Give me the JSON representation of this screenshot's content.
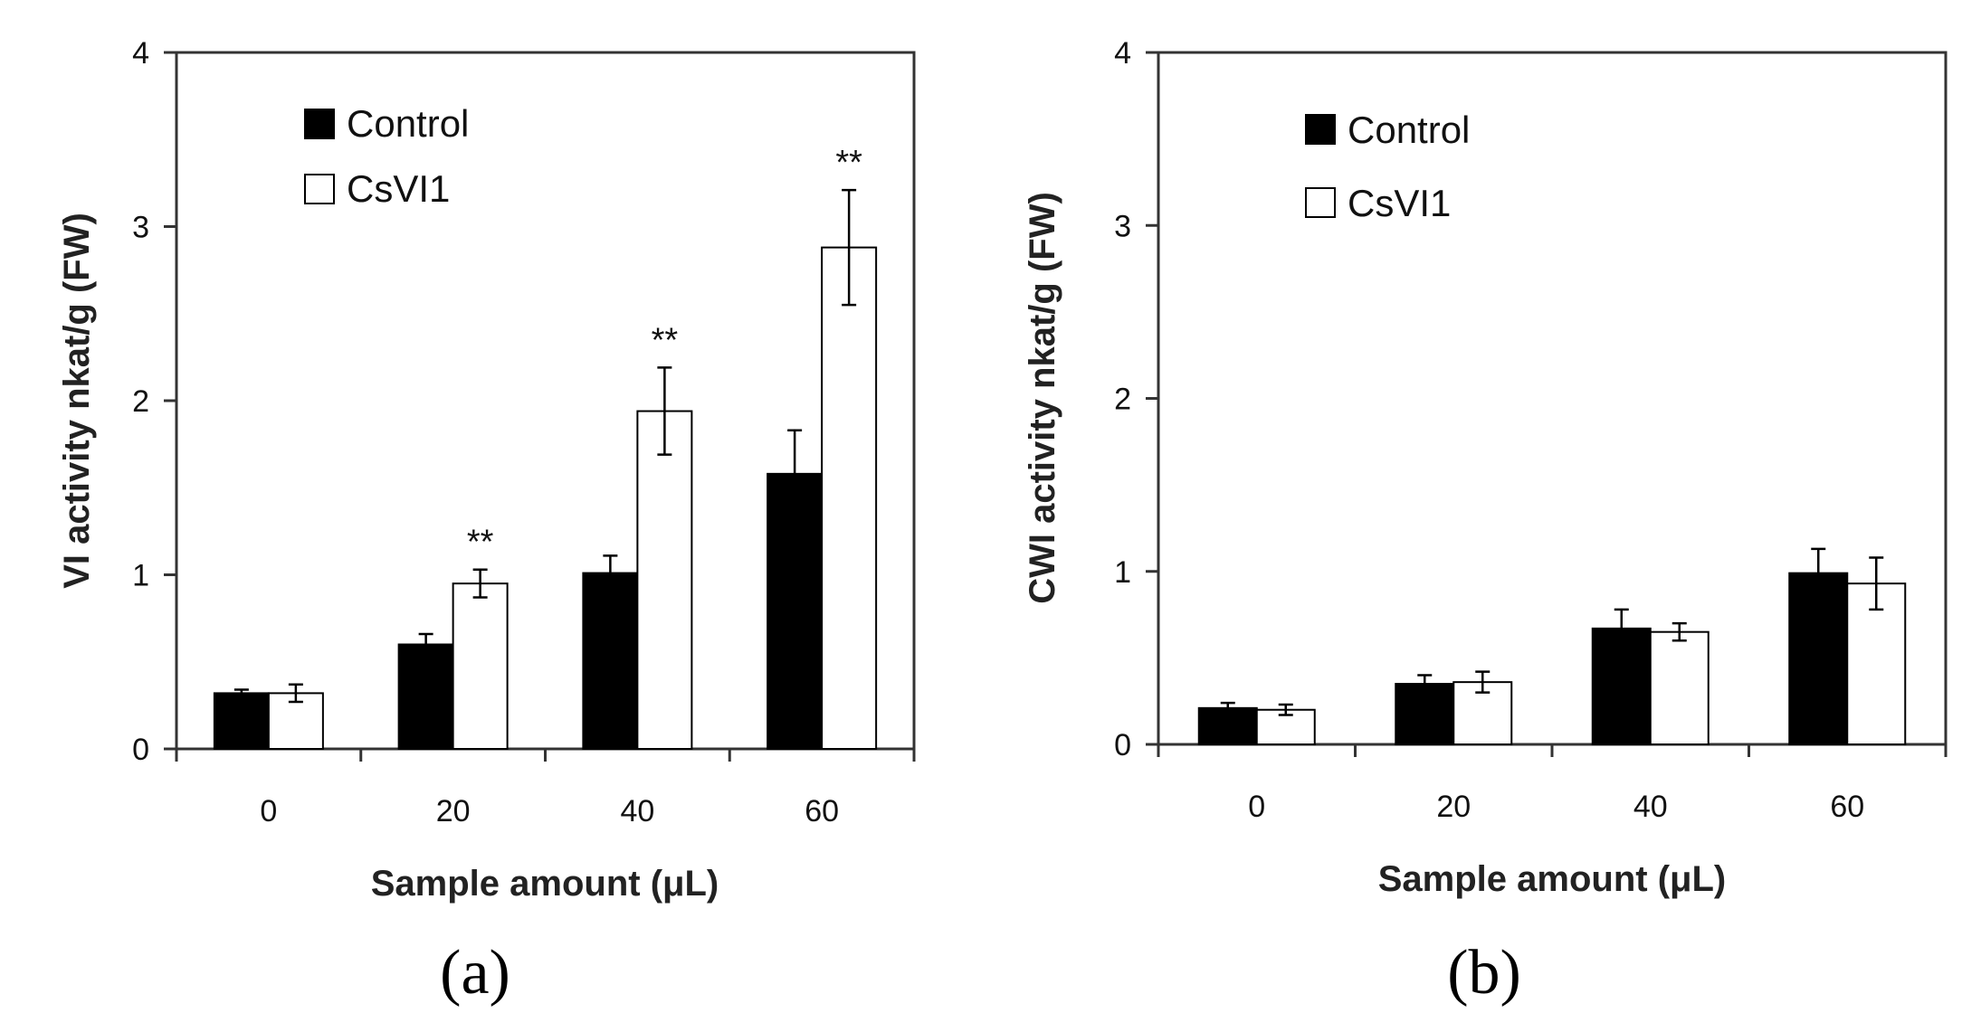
{
  "chart_data": [
    {
      "type": "bar",
      "panel_label": "(a)",
      "categories": [
        "0",
        "20",
        "40",
        "60"
      ],
      "series": [
        {
          "name": "Control",
          "color": "#000000",
          "values": [
            0.32,
            0.6,
            1.01,
            1.58
          ],
          "errors": [
            0.02,
            0.06,
            0.1,
            0.25
          ]
        },
        {
          "name": "CsVI1",
          "color": "#ffffff",
          "values": [
            0.32,
            0.95,
            1.94,
            2.88
          ],
          "errors": [
            0.05,
            0.08,
            0.25,
            0.33
          ]
        }
      ],
      "significance": [
        "",
        "**",
        "**",
        "**"
      ],
      "xlabel": "Sample amount (μL)",
      "ylabel": "VI activity  nkat/g (FW)",
      "ylim": [
        0,
        4
      ],
      "yticks": [
        "0",
        "1",
        "2",
        "3",
        "4"
      ],
      "legend_position": "top-left",
      "grid": false
    },
    {
      "type": "bar",
      "panel_label": "(b)",
      "categories": [
        "0",
        "20",
        "40",
        "60"
      ],
      "series": [
        {
          "name": "Control",
          "color": "#000000",
          "values": [
            0.21,
            0.35,
            0.67,
            0.99
          ],
          "errors": [
            0.03,
            0.05,
            0.11,
            0.14
          ]
        },
        {
          "name": "CsVI1",
          "color": "#ffffff",
          "values": [
            0.2,
            0.36,
            0.65,
            0.93
          ],
          "errors": [
            0.03,
            0.06,
            0.05,
            0.15
          ]
        }
      ],
      "significance": [
        "",
        "",
        "",
        ""
      ],
      "xlabel": "Sample amount (μL)",
      "ylabel": "CWI activity  nkat/g (FW)",
      "ylim": [
        0,
        4
      ],
      "yticks": [
        "0",
        "1",
        "2",
        "3",
        "4"
      ],
      "legend_position": "top-left",
      "grid": false
    }
  ]
}
